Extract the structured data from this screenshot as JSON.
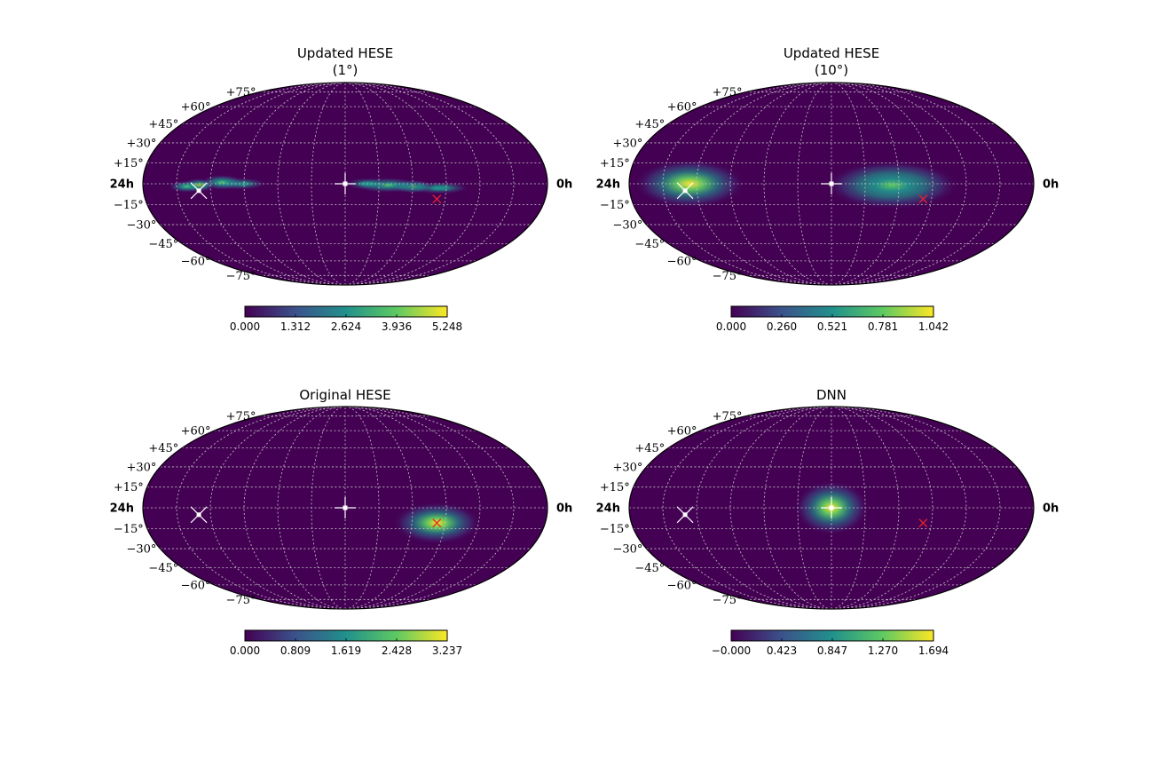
{
  "chart_data": [
    {
      "type": "heatmap",
      "title": [
        "Updated HESE",
        "(1°)"
      ],
      "projection": "mollweide",
      "lat_tick_labels": [
        "+75°",
        "+60°",
        "+45°",
        "+30°",
        "+15°",
        "−15°",
        "−30°",
        "−45°",
        "−60°",
        "−75°"
      ],
      "ra_labels": {
        "left": "24h",
        "right": "0h"
      },
      "colormap": "viridis",
      "colorbar": {
        "range": [
          0.0,
          5.248
        ],
        "tick_labels": [
          "0.000",
          "1.312",
          "2.624",
          "3.936",
          "5.248"
        ]
      },
      "hotspots": [
        {
          "ra_h": 17.6,
          "dec": -3,
          "amp": 0.5,
          "sra_h": 0.8,
          "sdec": 2.0
        },
        {
          "ra_h": 16.0,
          "dec": -2,
          "amp": 0.75,
          "sra_h": 0.6,
          "sdec": 2.2
        },
        {
          "ra_h": 14.5,
          "dec": -1,
          "amp": 0.6,
          "sra_h": 0.9,
          "sdec": 2.5
        },
        {
          "ra_h": 13.3,
          "dec": 0,
          "amp": 0.35,
          "sra_h": 0.6,
          "sdec": 2.0
        },
        {
          "ra_h": 5.8,
          "dec": 0,
          "amp": 0.45,
          "sra_h": 0.7,
          "sdec": 2.0
        },
        {
          "ra_h": 4.7,
          "dec": 1,
          "amp": 0.65,
          "sra_h": 0.6,
          "sdec": 2.5
        },
        {
          "ra_h": 3.3,
          "dec": -1,
          "amp": 1.0,
          "sra_h": 0.45,
          "sdec": 2.2
        },
        {
          "ra_h": 2.6,
          "dec": -2,
          "amp": 0.6,
          "sra_h": 0.5,
          "sdec": 2.0
        }
      ]
    },
    {
      "type": "heatmap",
      "title": [
        "Updated HESE",
        "(10°)"
      ],
      "projection": "mollweide",
      "lat_tick_labels": [
        "+75°",
        "+60°",
        "+45°",
        "+30°",
        "+15°",
        "−15°",
        "−30°",
        "−45°",
        "−60°",
        "−75°"
      ],
      "ra_labels": {
        "left": "24h",
        "right": "0h"
      },
      "colormap": "viridis",
      "colorbar": {
        "range": [
          0.0,
          1.042
        ],
        "tick_labels": [
          "0.000",
          "0.260",
          "0.521",
          "0.781",
          "1.042"
        ]
      },
      "hotspots": [
        {
          "ra_h": 15.6,
          "dec": -1,
          "amp": 0.8,
          "sra_h": 1.8,
          "sdec": 8
        },
        {
          "ra_h": 3.6,
          "dec": 0,
          "amp": 1.0,
          "sra_h": 1.5,
          "sdec": 8
        }
      ]
    },
    {
      "type": "heatmap",
      "title": [
        "Original HESE"
      ],
      "projection": "mollweide",
      "lat_tick_labels": [
        "+75°",
        "+60°",
        "+45°",
        "+30°",
        "+15°",
        "−15°",
        "−30°",
        "−45°",
        "−60°",
        "−75°"
      ],
      "ra_labels": {
        "left": "24h",
        "right": "0h"
      },
      "colormap": "viridis",
      "colorbar": {
        "range": [
          0.0,
          3.237
        ],
        "tick_labels": [
          "0.000",
          "0.809",
          "1.619",
          "2.428",
          "3.237"
        ]
      },
      "hotspots": [
        {
          "ra_h": 17.5,
          "dec": -11,
          "amp": 1.0,
          "sra_h": 1.2,
          "sdec": 7
        }
      ]
    },
    {
      "type": "heatmap",
      "title": [
        "DNN"
      ],
      "projection": "mollweide",
      "lat_tick_labels": [
        "+75°",
        "+60°",
        "+45°",
        "+30°",
        "+15°",
        "−15°",
        "−30°",
        "−45°",
        "−60°",
        "−75°"
      ],
      "ra_labels": {
        "left": "24h",
        "right": "0h"
      },
      "colormap": "viridis",
      "colorbar": {
        "range": [
          0.0,
          1.694
        ],
        "tick_labels": [
          "−0.000",
          "0.423",
          "0.847",
          "1.270",
          "1.694"
        ]
      },
      "hotspots": [
        {
          "ra_h": 12.0,
          "dec": 0,
          "amp": 1.0,
          "sra_h": 1.0,
          "sdec": 9
        }
      ]
    }
  ],
  "markers": {
    "center_cross": {
      "ra_h": 12.0,
      "dec": 0,
      "color": "#ffffff"
    },
    "white_star": {
      "ra_h": 3.3,
      "dec": -5,
      "color": "#ffffff"
    },
    "red_x": {
      "ra_h": 17.5,
      "dec": -11,
      "color": "#e8232a"
    }
  },
  "colors": {
    "background": "#440154",
    "grid": "#c8c8c8",
    "viridis": [
      "#440154",
      "#3b528b",
      "#21918c",
      "#5ec962",
      "#fde725"
    ]
  }
}
